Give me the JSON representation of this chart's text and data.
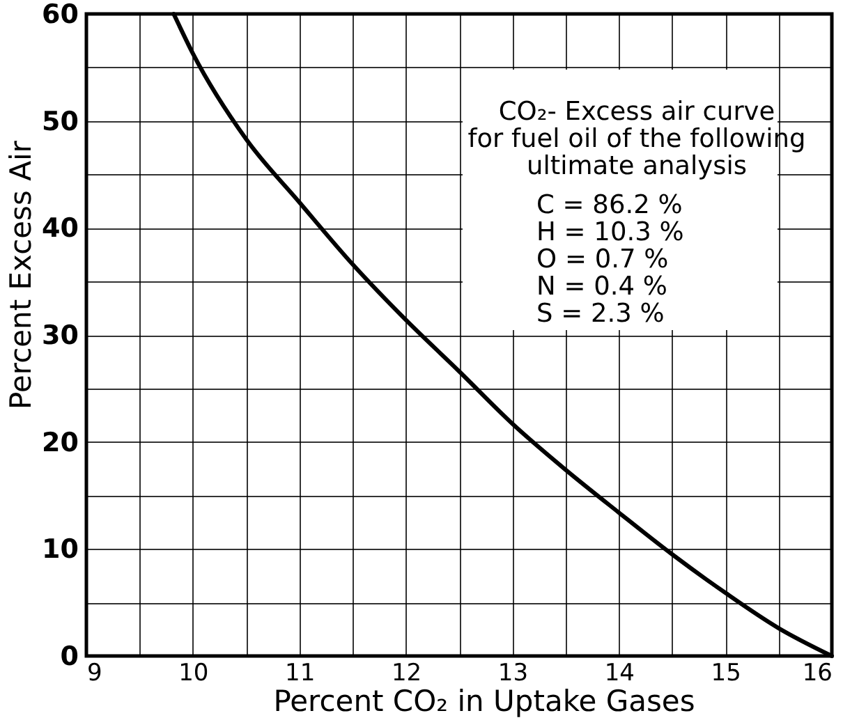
{
  "chart_data": {
    "type": "line",
    "xlabel": "Percent CO₂ in Uptake Gases",
    "ylabel": "Percent Excess Air",
    "annotations": [
      "CO₂- Excess air curve\nfor fuel oil of the following\nultimate analysis",
      "C = 86.2 %\nH = 10.3 %\nO = 0.7 %\nN = 0.4 %\nS = 2.3 %"
    ],
    "x": [
      9.82,
      10,
      10.5,
      11,
      11.5,
      12,
      12.5,
      13,
      13.5,
      14,
      14.5,
      15,
      15.5,
      16
    ],
    "series": [
      {
        "color": "#000000",
        "values": [
          60,
          56.3,
          48.3,
          42.4,
          36.6,
          31.4,
          26.6,
          21.7,
          17.4,
          13.4,
          9.5,
          5.9,
          2.6,
          0
        ]
      }
    ],
    "xlim": [
      9,
      16
    ],
    "ylim": [
      0,
      60
    ],
    "xticks": [
      9,
      {
        "value": 9.5,
        "label": null
      },
      10,
      {
        "value": 10.5,
        "label": null
      },
      11,
      {
        "value": 11.5,
        "label": null
      },
      12,
      {
        "value": 12.5,
        "label": null
      },
      13,
      {
        "value": 13.5,
        "label": null
      },
      14,
      {
        "value": 14.5,
        "label": null
      },
      15,
      {
        "value": 15.5,
        "label": null
      },
      16
    ],
    "yticks": [
      0,
      {
        "value": 5,
        "label": null
      },
      10,
      {
        "value": 15,
        "label": null
      },
      20,
      {
        "value": 25,
        "label": null
      },
      30,
      {
        "value": 35,
        "label": null
      },
      40,
      {
        "value": 45,
        "label": null
      },
      50,
      {
        "value": 55,
        "label": null
      },
      60
    ],
    "grid": true,
    "line_style": "solid"
  }
}
